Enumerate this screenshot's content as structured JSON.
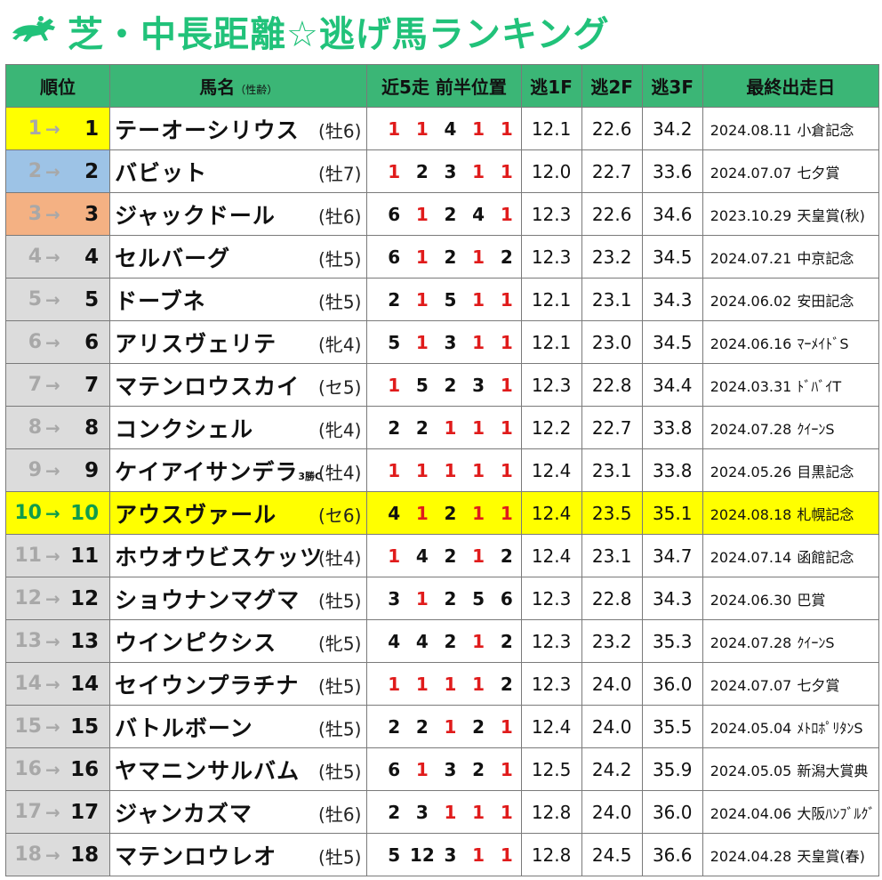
{
  "title": "芝・中長距離☆逃げ馬ランキング",
  "logo_icon": "horse-jockey-icon",
  "colors": {
    "title": "#21c27a",
    "header_bg": "#3bb676",
    "highlight": "#ffff00",
    "red": "#e01b1b"
  },
  "headers": {
    "rank": "順位",
    "name": "馬名",
    "name_sub": "（性齢）",
    "positions": "近5走 前半位置",
    "f1": "逃1F",
    "f2": "逃2F",
    "f3": "逃3F",
    "last": "最終出走日"
  },
  "rows": [
    {
      "prev": "1",
      "arrow": "→",
      "cur": "1",
      "name": "テーオーシリウス",
      "tag": "",
      "age": "(牡6)",
      "pos": [
        "1",
        "1",
        "4",
        "1",
        "1"
      ],
      "f1": "12.1",
      "f2": "22.6",
      "f3": "34.2",
      "date": "2024.08.11",
      "race": "小倉記念"
    },
    {
      "prev": "2",
      "arrow": "→",
      "cur": "2",
      "name": "バビット",
      "tag": "",
      "age": "(牡7)",
      "pos": [
        "1",
        "2",
        "3",
        "1",
        "1"
      ],
      "f1": "12.0",
      "f2": "22.7",
      "f3": "33.6",
      "date": "2024.07.07",
      "race": "七夕賞"
    },
    {
      "prev": "3",
      "arrow": "→",
      "cur": "3",
      "name": "ジャックドール",
      "tag": "",
      "age": "(牡6)",
      "pos": [
        "6",
        "1",
        "2",
        "4",
        "1"
      ],
      "f1": "12.3",
      "f2": "22.6",
      "f3": "34.6",
      "date": "2023.10.29",
      "race": "天皇賞(秋)"
    },
    {
      "prev": "4",
      "arrow": "→",
      "cur": "4",
      "name": "セルバーグ",
      "tag": "",
      "age": "(牡5)",
      "pos": [
        "6",
        "1",
        "2",
        "1",
        "2"
      ],
      "f1": "12.3",
      "f2": "23.2",
      "f3": "34.5",
      "date": "2024.07.21",
      "race": "中京記念"
    },
    {
      "prev": "5",
      "arrow": "→",
      "cur": "5",
      "name": "ドーブネ",
      "tag": "",
      "age": "(牡5)",
      "pos": [
        "2",
        "1",
        "5",
        "1",
        "1"
      ],
      "f1": "12.1",
      "f2": "23.1",
      "f3": "34.3",
      "date": "2024.06.02",
      "race": "安田記念"
    },
    {
      "prev": "6",
      "arrow": "→",
      "cur": "6",
      "name": "アリスヴェリテ",
      "tag": "",
      "age": "(牝4)",
      "pos": [
        "5",
        "1",
        "3",
        "1",
        "1"
      ],
      "f1": "12.1",
      "f2": "23.0",
      "f3": "34.5",
      "date": "2024.06.16",
      "race": "ﾏｰﾒｲﾄﾞS"
    },
    {
      "prev": "7",
      "arrow": "→",
      "cur": "7",
      "name": "マテンロウスカイ",
      "tag": "",
      "age": "(セ5)",
      "pos": [
        "1",
        "5",
        "2",
        "3",
        "1"
      ],
      "f1": "12.3",
      "f2": "22.8",
      "f3": "34.4",
      "date": "2024.03.31",
      "race": "ﾄﾞﾊﾞｲT"
    },
    {
      "prev": "8",
      "arrow": "→",
      "cur": "8",
      "name": "コンクシェル",
      "tag": "",
      "age": "(牝4)",
      "pos": [
        "2",
        "2",
        "1",
        "1",
        "1"
      ],
      "f1": "12.2",
      "f2": "22.7",
      "f3": "33.8",
      "date": "2024.07.28",
      "race": "ｸｲｰﾝS"
    },
    {
      "prev": "9",
      "arrow": "→",
      "cur": "9",
      "name": "ケイアイサンデラ",
      "tag": "3勝C",
      "age": "(牡4)",
      "pos": [
        "1",
        "1",
        "1",
        "1",
        "1"
      ],
      "f1": "12.4",
      "f2": "23.1",
      "f3": "33.8",
      "date": "2024.05.26",
      "race": "目黒記念"
    },
    {
      "prev": "10",
      "arrow": "→",
      "cur": "10",
      "name": "アウスヴァール",
      "tag": "",
      "age": "(セ6)",
      "pos": [
        "4",
        "1",
        "2",
        "1",
        "1"
      ],
      "f1": "12.4",
      "f2": "23.5",
      "f3": "35.1",
      "date": "2024.08.18",
      "race": "札幌記念"
    },
    {
      "prev": "11",
      "arrow": "→",
      "cur": "11",
      "name": "ホウオウビスケッツ",
      "tag": "",
      "age": "(牡4)",
      "pos": [
        "1",
        "4",
        "2",
        "1",
        "2"
      ],
      "f1": "12.4",
      "f2": "23.1",
      "f3": "34.7",
      "date": "2024.07.14",
      "race": "函館記念"
    },
    {
      "prev": "12",
      "arrow": "→",
      "cur": "12",
      "name": "ショウナンマグマ",
      "tag": "",
      "age": "(牡5)",
      "pos": [
        "3",
        "1",
        "2",
        "5",
        "6"
      ],
      "f1": "12.3",
      "f2": "22.8",
      "f3": "34.3",
      "date": "2024.06.30",
      "race": "巴賞"
    },
    {
      "prev": "13",
      "arrow": "→",
      "cur": "13",
      "name": "ウインピクシス",
      "tag": "",
      "age": "(牝5)",
      "pos": [
        "4",
        "4",
        "2",
        "1",
        "2"
      ],
      "f1": "12.3",
      "f2": "23.2",
      "f3": "35.3",
      "date": "2024.07.28",
      "race": "ｸｲｰﾝS"
    },
    {
      "prev": "14",
      "arrow": "→",
      "cur": "14",
      "name": "セイウンプラチナ",
      "tag": "",
      "age": "(牡5)",
      "pos": [
        "1",
        "1",
        "1",
        "1",
        "2"
      ],
      "f1": "12.3",
      "f2": "24.0",
      "f3": "36.0",
      "date": "2024.07.07",
      "race": "七夕賞"
    },
    {
      "prev": "15",
      "arrow": "→",
      "cur": "15",
      "name": "バトルボーン",
      "tag": "",
      "age": "(牡5)",
      "pos": [
        "2",
        "2",
        "1",
        "2",
        "1"
      ],
      "f1": "12.4",
      "f2": "24.0",
      "f3": "35.5",
      "date": "2024.05.04",
      "race": "ﾒﾄﾛﾎﾟﾘﾀﾝS"
    },
    {
      "prev": "16",
      "arrow": "→",
      "cur": "16",
      "name": "ヤマニンサルバム",
      "tag": "",
      "age": "(牡5)",
      "pos": [
        "6",
        "1",
        "3",
        "2",
        "1"
      ],
      "f1": "12.5",
      "f2": "24.2",
      "f3": "35.9",
      "date": "2024.05.05",
      "race": "新潟大賞典"
    },
    {
      "prev": "17",
      "arrow": "→",
      "cur": "17",
      "name": "ジャンカズマ",
      "tag": "",
      "age": "(牡6)",
      "pos": [
        "2",
        "3",
        "1",
        "1",
        "1"
      ],
      "f1": "12.8",
      "f2": "24.0",
      "f3": "36.0",
      "date": "2024.04.06",
      "race": "大阪ﾊﾝﾌﾞﾙｸﾞ"
    },
    {
      "prev": "18",
      "arrow": "→",
      "cur": "18",
      "name": "マテンロウレオ",
      "tag": "",
      "age": "(牡5)",
      "pos": [
        "5",
        "12",
        "3",
        "1",
        "1"
      ],
      "f1": "12.8",
      "f2": "24.5",
      "f3": "36.6",
      "date": "2024.04.28",
      "race": "天皇賞(春)"
    }
  ]
}
